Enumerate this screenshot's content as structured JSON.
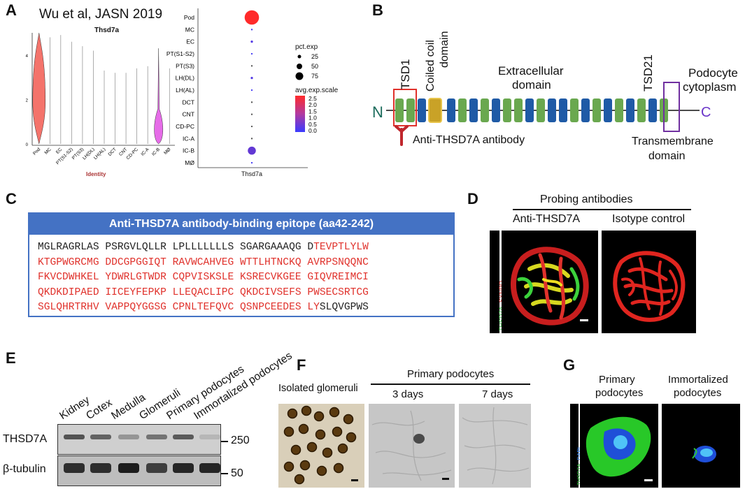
{
  "panels": {
    "A": "A",
    "B": "B",
    "C": "C",
    "D": "D",
    "E": "E",
    "F": "F",
    "G": "G"
  },
  "panel_a": {
    "citation": "Wu et al, JASN 2019",
    "violin_title": "Thsd7a",
    "violin_xlabel": "Identity",
    "violin_yticks": [
      "0",
      "2",
      "4"
    ],
    "violin_categories": [
      "Pod",
      "MC",
      "EC",
      "PT(S1-S2)",
      "PT(S3)",
      "LH(DL)",
      "LH(AL)",
      "DCT",
      "CNT",
      "CD-PC",
      "IC-A",
      "IC-B",
      "MØ"
    ],
    "dot_xlabel": "Thsd7a",
    "legend_pct_title": "pct.exp",
    "legend_pct_values": [
      "25",
      "50",
      "75"
    ],
    "legend_avg_title": "avg.exp.scale",
    "legend_avg_values": [
      "2.5",
      "2.0",
      "1.5",
      "1.0",
      "0.5",
      "0.0"
    ]
  },
  "chart_data": [
    {
      "type": "violin",
      "title": "Thsd7a",
      "xlabel": "Identity",
      "categories": [
        "Pod",
        "MC",
        "EC",
        "PT(S1-S2)",
        "PT(S3)",
        "LH(DL)",
        "LH(AL)",
        "DCT",
        "CNT",
        "CD-PC",
        "IC-A",
        "IC-B",
        "MØ"
      ],
      "max_values": [
        5.0,
        4.8,
        4.9,
        4.6,
        4.4,
        4.2,
        3.3,
        3.2,
        3.2,
        3.4,
        3.5,
        4.3,
        3.4
      ],
      "highlight_colors": {
        "Pod": "#f4736b",
        "IC-B": "#e66ce8"
      },
      "ylim": [
        0,
        5
      ]
    },
    {
      "type": "scatter",
      "title": "",
      "xlabel": "Thsd7a",
      "categories": [
        "Pod",
        "MC",
        "EC",
        "PT(S1-S2)",
        "PT(S3)",
        "LH(DL)",
        "LH(AL)",
        "DCT",
        "CNT",
        "CD-PC",
        "IC-A",
        "IC-B",
        "MØ"
      ],
      "pct_exp": [
        80,
        1,
        2,
        1,
        1,
        2,
        1,
        1,
        1,
        1,
        1,
        25,
        1
      ],
      "avg_exp_scale": [
        2.6,
        0.1,
        0.3,
        0.1,
        0.0,
        0.3,
        0.1,
        0.0,
        0.0,
        0.0,
        0.0,
        0.5,
        0.1
      ],
      "legend": "right"
    }
  ],
  "panel_b": {
    "tsd1": "TSD1",
    "coiled": "Coiled coil",
    "coiled2": "domain",
    "extracellular": "Extracellular",
    "extracellular2": "domain",
    "tsd21": "TSD21",
    "podocyte": "Podocyte",
    "cytoplasm": "cytoplasm",
    "n_term": "N",
    "c_term": "C",
    "antibody": "Anti-THSD7A antibody",
    "transmembrane": "Transmembrane",
    "transmembrane2": "domain"
  },
  "panel_c": {
    "header": "Anti-THSD7A antibody-binding epitope (aa42-242)",
    "line1_black": "MGLRAGRLAS PSRGVLQLLR LPLLLLLLLS SGARGAAAQG D",
    "line1_red": "TEVPTLYLW",
    "line2": "KTGPWGRCMG DDCGPGGIQT RAVWCAHVEG WTTLHTNCKQ AVRPSNQQNC",
    "line3": "FKVCDWHKEL YDWRLGTWDR CQPVISKSLE KSRECVKGEE GIQVREIMCI",
    "line4": "QKDKDIPAED IICEYFEPKP LLEQACLIPC QKDCIVSEFS PWSECSRTCG",
    "line5_red": "SGLQHRTRHV VAPPQYGGSG CPNLTEFQVC QSNPCEEDES LY",
    "line5_black": "SLQVGPWS"
  },
  "panel_d": {
    "title": "Probing antibodies",
    "col1": "Anti-THSD7A",
    "col2": "Isotype control",
    "side_green": "THSD7A",
    "side_plus": "+",
    "side_red": "SYNPO"
  },
  "panel_e": {
    "lanes": [
      "Kidney",
      "Cotex",
      "Medulla",
      "Glomeruli",
      "Primary podocytes",
      "Immortalized podocytes"
    ],
    "row1": "THSD7A",
    "row2": "β-tubulin",
    "mw1": "250",
    "mw2": "50"
  },
  "panel_f": {
    "isolated": "Isolated glomeruli",
    "primary": "Primary podocytes",
    "day3": "3 days",
    "day7": "7 days"
  },
  "panel_g": {
    "primary": "Primary",
    "primary2": "podocytes",
    "immortalized": "Immortalized",
    "immortalized2": "podocytes",
    "side_green": "THSD7A",
    "side_plus": "+",
    "side_blue": "DAPI"
  },
  "colors": {
    "green_domain": "#6aa84f",
    "blue_domain": "#1f5aa6",
    "coil_domain": "#c9a227",
    "red_box": "#e0312b",
    "purple_box": "#7030a0",
    "seq_blue": "#4472c4"
  }
}
